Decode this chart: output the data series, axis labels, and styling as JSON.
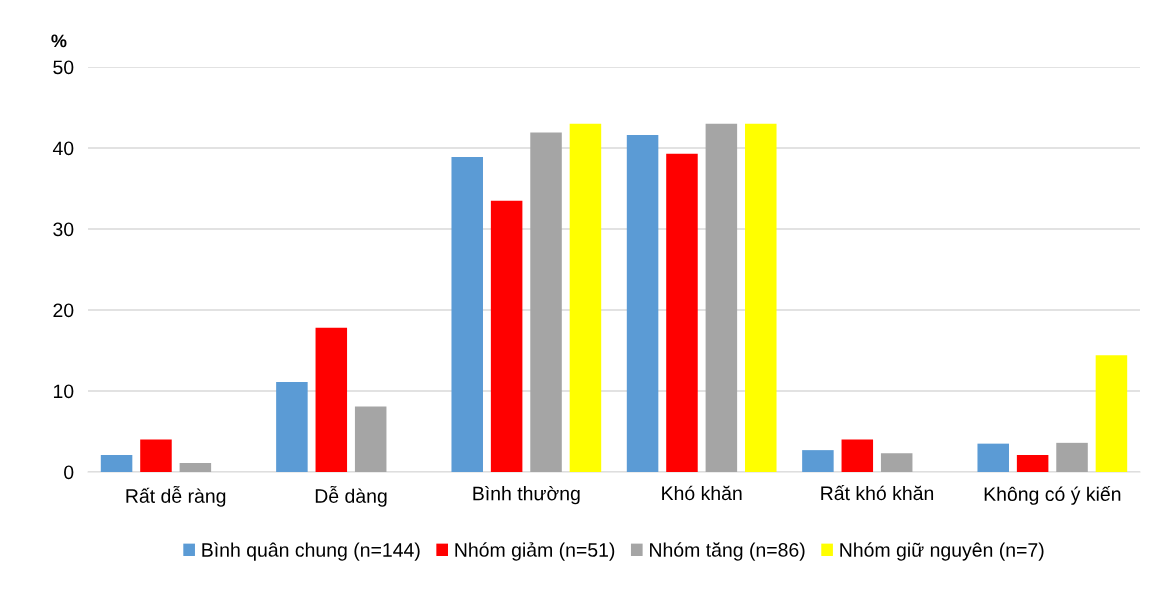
{
  "chart_data": {
    "type": "bar",
    "ylabel": "%",
    "categories": [
      "Rất dễ ràng",
      "Dễ dàng",
      "Bình thường",
      "Khó khăn",
      "Rất khó khăn",
      "Không có ý kiến"
    ],
    "series": [
      {
        "name": "Bình quân chung (n=144)",
        "color": "#5b9bd5",
        "values": [
          2.1,
          11.1,
          38.9,
          41.6,
          2.7,
          3.5
        ]
      },
      {
        "name": "Nhóm giảm (n=51)",
        "color": "#ff0000",
        "values": [
          4.0,
          17.8,
          33.5,
          39.3,
          4.0,
          2.1
        ]
      },
      {
        "name": "Nhóm tăng (n=86)",
        "color": "#a5a5a5",
        "values": [
          1.1,
          8.1,
          41.9,
          43.0,
          2.3,
          3.6
        ]
      },
      {
        "name": "Nhóm giữ nguyên (n=7)",
        "color": "#ffff00",
        "values": [
          0,
          0,
          43.0,
          43.0,
          0,
          14.4
        ]
      }
    ],
    "ylim": [
      0,
      50
    ],
    "yticks": [
      0,
      10,
      20,
      30,
      40,
      50
    ],
    "grid": "y",
    "legend": "bottom"
  }
}
